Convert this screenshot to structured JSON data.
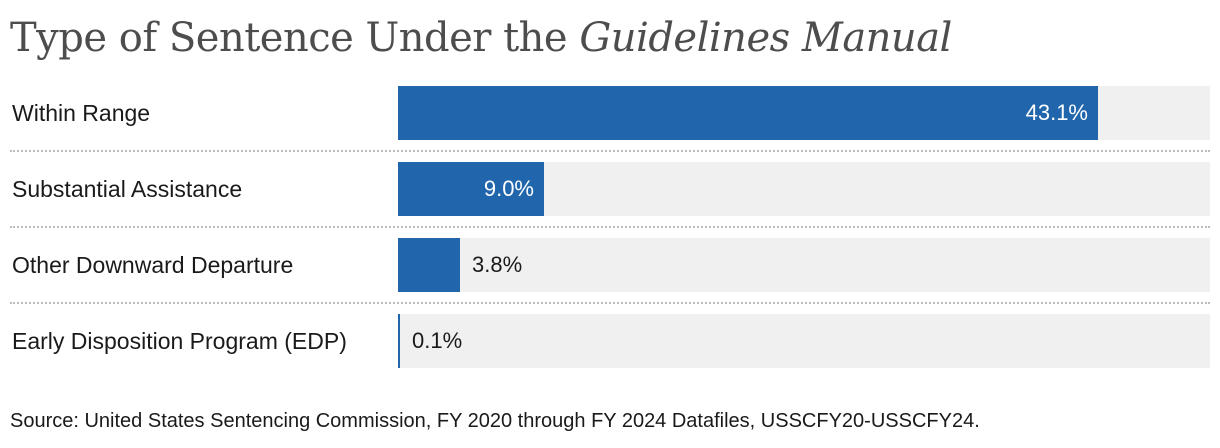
{
  "title": {
    "prefix": "Type of Sentence Under the ",
    "emphasis": "Guidelines Manual"
  },
  "chart_data": {
    "type": "bar",
    "orientation": "horizontal",
    "title": "Type of Sentence Under the Guidelines Manual",
    "categories": [
      "Within Range",
      "Substantial Assistance",
      "Other Downward Departure",
      "Early Disposition Program (EDP)"
    ],
    "values": [
      43.1,
      9.0,
      3.8,
      0.1
    ],
    "value_labels": [
      "43.1%",
      "9.0%",
      "3.8%",
      "0.1%"
    ],
    "unit": "%",
    "xlim": [
      0,
      50
    ],
    "grid": false,
    "colors": {
      "bar": "#2166ac",
      "track": "#f0f0f0"
    }
  },
  "source": "Source: United States Sentencing Commission, FY 2020 through FY 2024 Datafiles, USSCFY20-USSCFY24."
}
